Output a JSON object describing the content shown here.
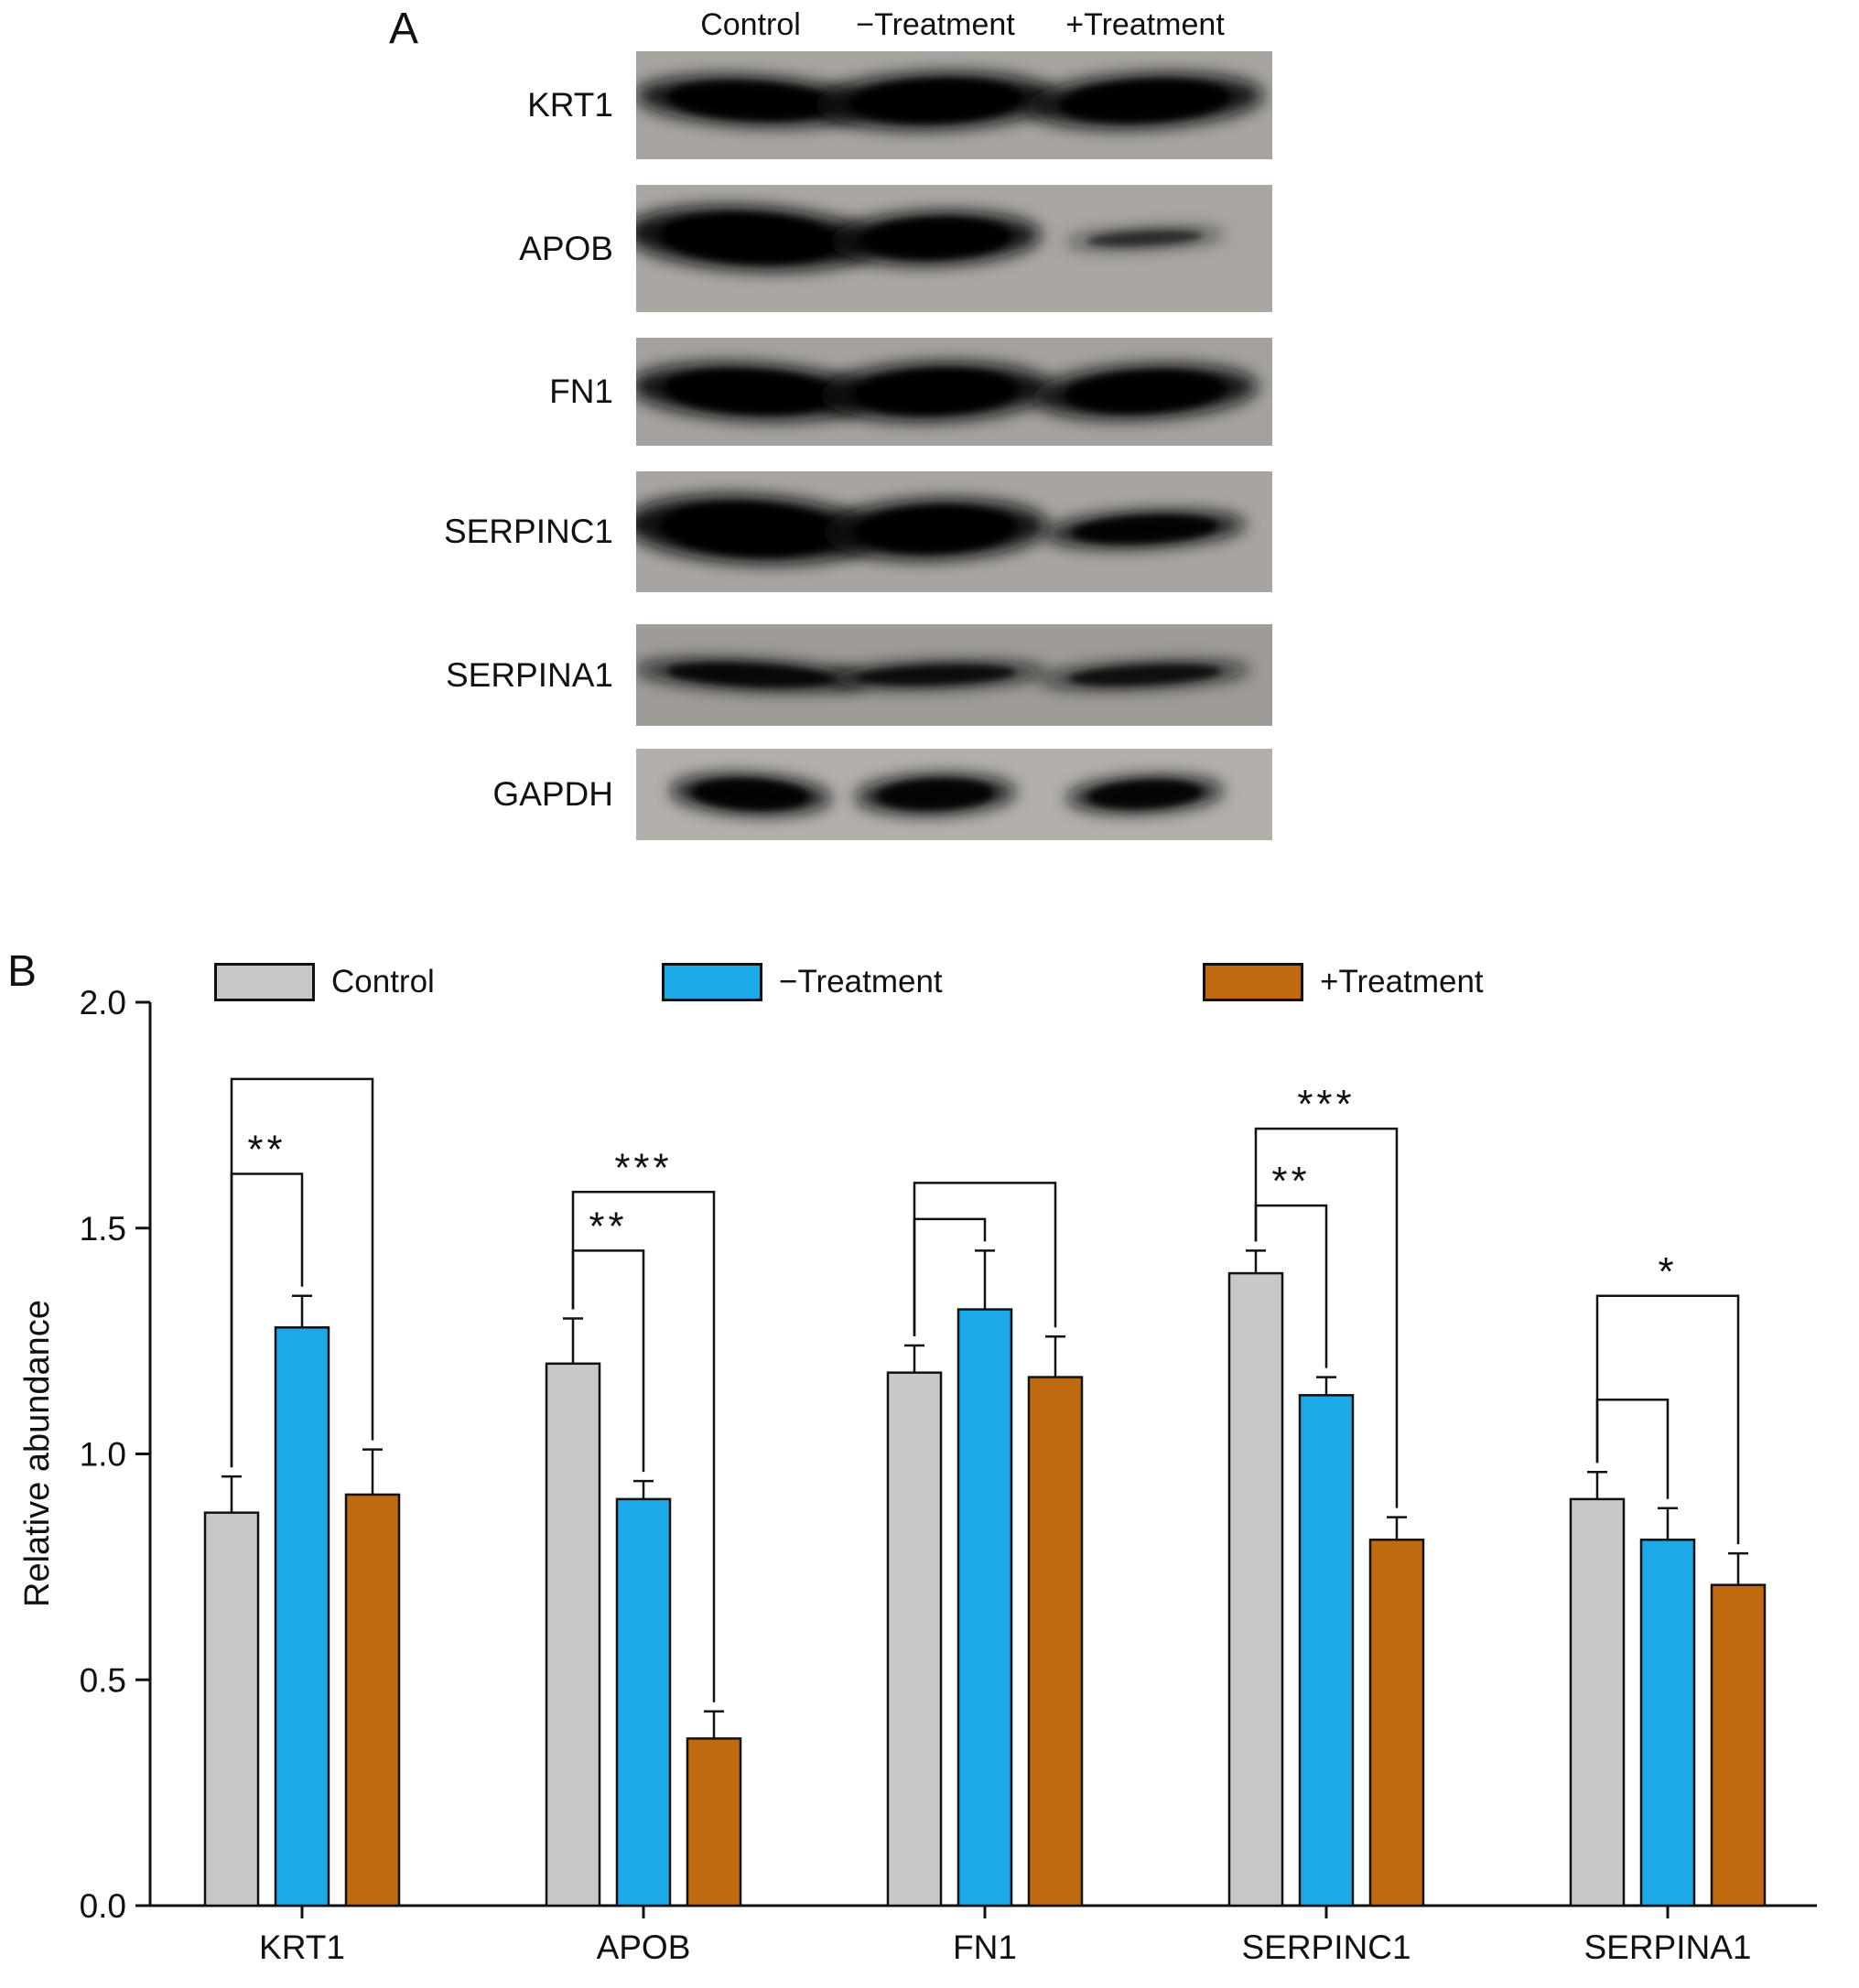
{
  "panel_a": {
    "label": "A",
    "column_headers": [
      "Control",
      "−Treatment",
      "+Treatment"
    ],
    "blots": [
      {
        "label": "KRT1",
        "bg": "#a7a4a0",
        "band_y": 0.46,
        "lanes": [
          {
            "intensity": 0.93,
            "thickness": 0.46,
            "width": 1.15
          },
          {
            "intensity": 0.96,
            "thickness": 0.52,
            "width": 1.2
          },
          {
            "intensity": 0.94,
            "thickness": 0.5,
            "width": 1.18
          }
        ]
      },
      {
        "label": "APOB",
        "bg": "#aaa7a3",
        "band_y": 0.42,
        "lanes": [
          {
            "intensity": 0.97,
            "thickness": 0.5,
            "width": 1.25
          },
          {
            "intensity": 0.94,
            "thickness": 0.42,
            "width": 1.05
          },
          {
            "intensity": 0.55,
            "thickness": 0.16,
            "width": 0.8
          }
        ]
      },
      {
        "label": "FN1",
        "bg": "#a5a29e",
        "band_y": 0.5,
        "lanes": [
          {
            "intensity": 0.96,
            "thickness": 0.52,
            "width": 1.2
          },
          {
            "intensity": 0.96,
            "thickness": 0.54,
            "width": 1.15
          },
          {
            "intensity": 0.94,
            "thickness": 0.5,
            "width": 1.12
          }
        ]
      },
      {
        "label": "SERPINC1",
        "bg": "#a8a5a1",
        "band_y": 0.48,
        "lanes": [
          {
            "intensity": 0.98,
            "thickness": 0.56,
            "width": 1.25
          },
          {
            "intensity": 0.96,
            "thickness": 0.5,
            "width": 1.12
          },
          {
            "intensity": 0.9,
            "thickness": 0.3,
            "width": 1.0
          }
        ]
      },
      {
        "label": "SERPINA1",
        "bg": "#9f9c98",
        "band_y": 0.5,
        "lanes": [
          {
            "intensity": 0.82,
            "thickness": 0.3,
            "width": 1.15
          },
          {
            "intensity": 0.78,
            "thickness": 0.26,
            "width": 1.1
          },
          {
            "intensity": 0.75,
            "thickness": 0.26,
            "width": 1.05
          }
        ]
      },
      {
        "label": "GAPDH",
        "bg": "#b3b0ac",
        "band_y": 0.5,
        "lanes": [
          {
            "intensity": 0.9,
            "thickness": 0.44,
            "width": 0.8
          },
          {
            "intensity": 0.88,
            "thickness": 0.44,
            "width": 0.8
          },
          {
            "intensity": 0.87,
            "thickness": 0.4,
            "width": 0.78
          }
        ]
      }
    ]
  },
  "panel_b": {
    "label": "B"
  },
  "chart_data": {
    "type": "bar",
    "title": "",
    "xlabel": "",
    "ylabel": "Relative abundance",
    "ylim": [
      0,
      2.0
    ],
    "yticks": [
      0.0,
      0.5,
      1.0,
      1.5,
      2.0
    ],
    "grid": false,
    "legend_position": "top",
    "categories": [
      "KRT1",
      "APOB",
      "FN1",
      "SERPINC1",
      "SERPINA1"
    ],
    "series": [
      {
        "name": "Control",
        "color": "#c8c8c8",
        "values": [
          0.87,
          1.2,
          1.18,
          1.4,
          0.9
        ],
        "errors": [
          0.08,
          0.1,
          0.06,
          0.05,
          0.06
        ]
      },
      {
        "name": "−Treatment",
        "color": "#1ca9e8",
        "values": [
          1.28,
          0.9,
          1.32,
          1.13,
          0.81
        ],
        "errors": [
          0.07,
          0.04,
          0.13,
          0.04,
          0.07
        ]
      },
      {
        "name": "+Treatment",
        "color": "#c06a10",
        "values": [
          0.91,
          0.37,
          1.17,
          0.81,
          0.71
        ],
        "errors": [
          0.1,
          0.06,
          0.09,
          0.05,
          0.07
        ]
      }
    ],
    "significance": [
      {
        "group": 0,
        "from": 0,
        "to": 1,
        "y": 1.62,
        "label": "**"
      },
      {
        "group": 0,
        "from": 0,
        "to": 2,
        "y": 1.83,
        "label": ""
      },
      {
        "group": 1,
        "from": 0,
        "to": 1,
        "y": 1.45,
        "label": "**"
      },
      {
        "group": 1,
        "from": 0,
        "to": 2,
        "y": 1.58,
        "label": "***"
      },
      {
        "group": 2,
        "from": 0,
        "to": 1,
        "y": 1.52,
        "label": ""
      },
      {
        "group": 2,
        "from": 0,
        "to": 2,
        "y": 1.6,
        "label": ""
      },
      {
        "group": 3,
        "from": 0,
        "to": 1,
        "y": 1.55,
        "label": "**"
      },
      {
        "group": 3,
        "from": 0,
        "to": 2,
        "y": 1.72,
        "label": "***"
      },
      {
        "group": 4,
        "from": 0,
        "to": 1,
        "y": 1.12,
        "label": ""
      },
      {
        "group": 4,
        "from": 0,
        "to": 2,
        "y": 1.35,
        "label": "*"
      }
    ]
  }
}
